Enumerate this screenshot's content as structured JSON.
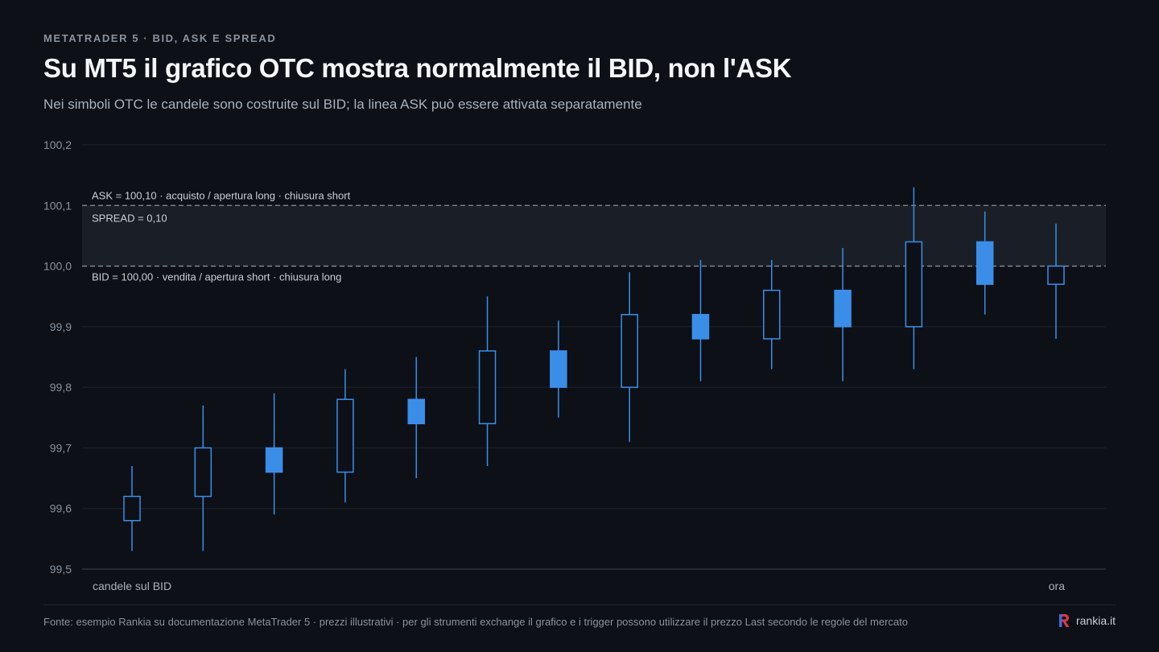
{
  "header": {
    "eyebrow": "METATRADER 5 · BID, ASK E SPREAD",
    "title": "Su MT5 il grafico OTC mostra normalmente il BID, non l'ASK",
    "subtitle": "Nei simboli OTC le candele sono costruite sul BID; la linea ASK può essere attivata separatamente"
  },
  "colors": {
    "bullish": "#3b8ee8",
    "background": "#0d1017",
    "grid": "#1f242c",
    "spread_band": "#1a1f27",
    "reference_line": "#8a8f98",
    "brand_mark": "#e2364a"
  },
  "chart_data": {
    "type": "candlestick",
    "ylim": [
      99.5,
      100.2
    ],
    "yticks": [
      99.5,
      99.6,
      99.7,
      99.8,
      99.9,
      100.0,
      100.1,
      100.2
    ],
    "ytick_labels": [
      "99,5",
      "99,6",
      "99,7",
      "99,8",
      "99,9",
      "100,0",
      "100,1",
      "100,2"
    ],
    "x_start_label": "candele sul BID",
    "x_end_label": "ora",
    "candles": [
      {
        "open": 99.58,
        "high": 99.67,
        "low": 99.53,
        "close": 99.62,
        "filled": false
      },
      {
        "open": 99.62,
        "high": 99.77,
        "low": 99.53,
        "close": 99.7,
        "filled": false
      },
      {
        "open": 99.66,
        "high": 99.79,
        "low": 99.59,
        "close": 99.7,
        "filled": true
      },
      {
        "open": 99.66,
        "high": 99.83,
        "low": 99.61,
        "close": 99.78,
        "filled": false
      },
      {
        "open": 99.74,
        "high": 99.85,
        "low": 99.65,
        "close": 99.78,
        "filled": true
      },
      {
        "open": 99.74,
        "high": 99.95,
        "low": 99.67,
        "close": 99.86,
        "filled": false
      },
      {
        "open": 99.8,
        "high": 99.91,
        "low": 99.75,
        "close": 99.86,
        "filled": true
      },
      {
        "open": 99.8,
        "high": 99.99,
        "low": 99.71,
        "close": 99.92,
        "filled": false
      },
      {
        "open": 99.88,
        "high": 100.01,
        "low": 99.81,
        "close": 99.92,
        "filled": true
      },
      {
        "open": 99.88,
        "high": 100.01,
        "low": 99.83,
        "close": 99.96,
        "filled": false
      },
      {
        "open": 99.9,
        "high": 100.03,
        "low": 99.81,
        "close": 99.96,
        "filled": true
      },
      {
        "open": 99.9,
        "high": 100.13,
        "low": 99.83,
        "close": 100.04,
        "filled": false
      },
      {
        "open": 99.97,
        "high": 100.09,
        "low": 99.92,
        "close": 100.04,
        "filled": true
      },
      {
        "open": 99.97,
        "high": 100.07,
        "low": 99.88,
        "close": 100.0,
        "filled": false
      }
    ],
    "ask": {
      "value": 100.1,
      "label": "ASK = 100,10 · acquisto / apertura long · chiusura short"
    },
    "bid": {
      "value": 100.0,
      "label": "BID = 100,00 · vendita / apertura short · chiusura long"
    },
    "spread": {
      "value": 0.1,
      "label": "SPREAD = 0,10"
    }
  },
  "footer": {
    "source": "Fonte: esempio Rankia su documentazione MetaTrader 5 · prezzi illustrativi · per gli strumenti exchange il grafico e i trigger possono utilizzare il prezzo Last secondo le regole del mercato",
    "brand": "rankia.it",
    "brand_icon": "rankia-logo-icon"
  }
}
